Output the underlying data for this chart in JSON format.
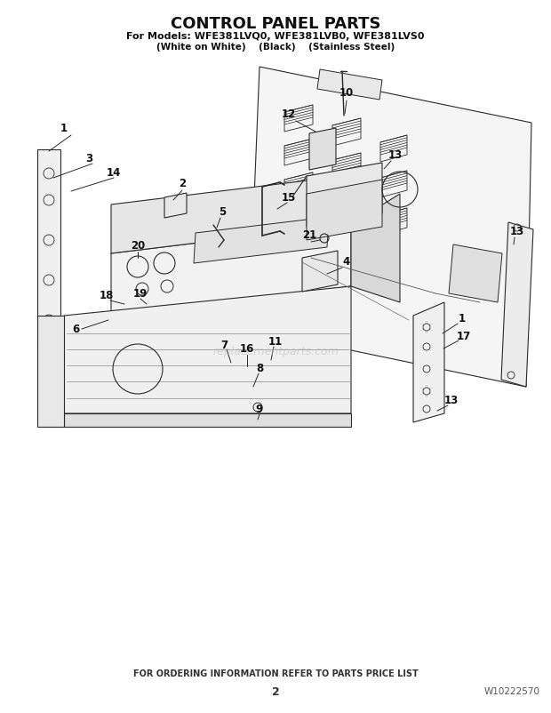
{
  "title": "CONTROL PANEL PARTS",
  "subtitle1": "For Models: WFE381LVQ0, WFE381LVB0, WFE381LVS0",
  "subtitle2": "(White on White)    (Black)    (Stainless Steel)",
  "footer_center": "FOR ORDERING INFORMATION REFER TO PARTS PRICE LIST",
  "footer_page": "2",
  "footer_right": "W10222570",
  "bg_color": "#ffffff",
  "line_color": "#2a2a2a",
  "watermark_text": "replacementparts.com",
  "title_fontsize": 13,
  "sub1_fontsize": 8,
  "sub2_fontsize": 7.5,
  "label_fontsize": 8.5,
  "footer_fontsize": 7,
  "page_fontsize": 9
}
